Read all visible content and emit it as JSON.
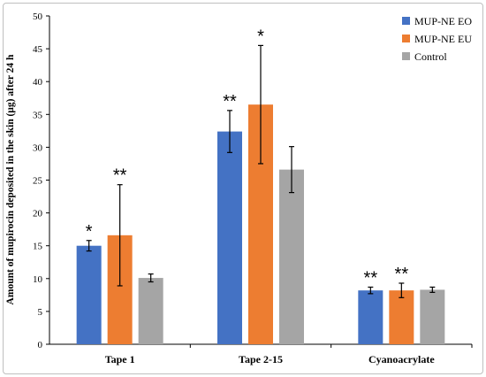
{
  "chart_data": {
    "type": "bar",
    "title": "",
    "xlabel": "",
    "ylabel": "Amount of mupirocin deposited in the skin (µg) after 24 h",
    "ylim": [
      0,
      50
    ],
    "yticks": [
      "0",
      "5",
      "10",
      "15",
      "20",
      "25",
      "30",
      "35",
      "40",
      "45",
      "50"
    ],
    "categories": [
      "Tape 1",
      "Tape 2-15",
      "Cyanoacrylate"
    ],
    "series": [
      {
        "name": "MUP-NE EO",
        "color": "#4472C4",
        "values": [
          15.0,
          32.4,
          8.2
        ],
        "errors": [
          0.8,
          3.2,
          0.5
        ],
        "significance": [
          "*",
          "**",
          "**"
        ]
      },
      {
        "name": "MUP-NE EU",
        "color": "#ED7D31",
        "values": [
          16.6,
          36.5,
          8.2
        ],
        "errors": [
          7.7,
          9.0,
          1.1
        ],
        "significance": [
          "**",
          "*",
          "**"
        ]
      },
      {
        "name": "Control",
        "color": "#A5A5A5",
        "values": [
          10.1,
          26.6,
          8.3
        ],
        "errors": [
          0.6,
          3.5,
          0.4
        ],
        "significance": [
          "",
          "",
          ""
        ]
      }
    ],
    "legend_position": "top-right",
    "grid": false
  }
}
